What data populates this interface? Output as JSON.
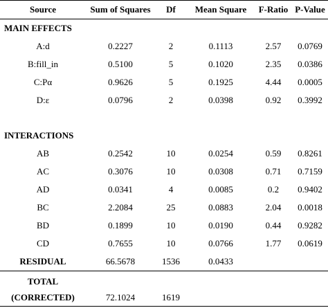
{
  "header": {
    "source": "Source",
    "sum_of_squares": "Sum of Squares",
    "df": "Df",
    "mean_square": "Mean Square",
    "f_ratio": "F-Ratio",
    "p_value": "P-Value"
  },
  "main_effects": {
    "title": "MAIN EFFECTS",
    "rows": [
      {
        "source": "A:d",
        "ss": "0.2227",
        "df": "2",
        "ms": "0.1113",
        "f": "2.57",
        "p": "0.0769"
      },
      {
        "source": "B:fill_in",
        "ss": "0.5100",
        "df": "5",
        "ms": "0.1020",
        "f": "2.35",
        "p": "0.0386"
      },
      {
        "source": "C:Pα",
        "ss": "0.9626",
        "df": "5",
        "ms": "0.1925",
        "f": "4.44",
        "p": "0.0005"
      },
      {
        "source": "D:ε",
        "ss": "0.0796",
        "df": "2",
        "ms": "0.0398",
        "f": "0.92",
        "p": "0.3992"
      }
    ]
  },
  "interactions": {
    "title": "INTERACTIONS",
    "rows": [
      {
        "source": "AB",
        "ss": "0.2542",
        "df": "10",
        "ms": "0.0254",
        "f": "0.59",
        "p": "0.8261"
      },
      {
        "source": "AC",
        "ss": "0.3076",
        "df": "10",
        "ms": "0.0308",
        "f": "0.71",
        "p": "0.7159"
      },
      {
        "source": "AD",
        "ss": "0.0341",
        "df": "4",
        "ms": "0.0085",
        "f": "0.2",
        "p": "0.9402"
      },
      {
        "source": "BC",
        "ss": "2.2084",
        "df": "25",
        "ms": "0.0883",
        "f": "2.04",
        "p": "0.0018"
      },
      {
        "source": "BD",
        "ss": "0.1899",
        "df": "10",
        "ms": "0.0190",
        "f": "0.44",
        "p": "0.9282"
      },
      {
        "source": "CD",
        "ss": "0.7655",
        "df": "10",
        "ms": "0.0766",
        "f": "1.77",
        "p": "0.0619"
      }
    ]
  },
  "residual": {
    "source": "RESIDUAL",
    "ss": "66.5678",
    "df": "1536",
    "ms": "0.0433"
  },
  "total": {
    "source_line1": "TOTAL",
    "source_line2": "(CORRECTED)",
    "ss": "72.1024",
    "df": "1619"
  }
}
